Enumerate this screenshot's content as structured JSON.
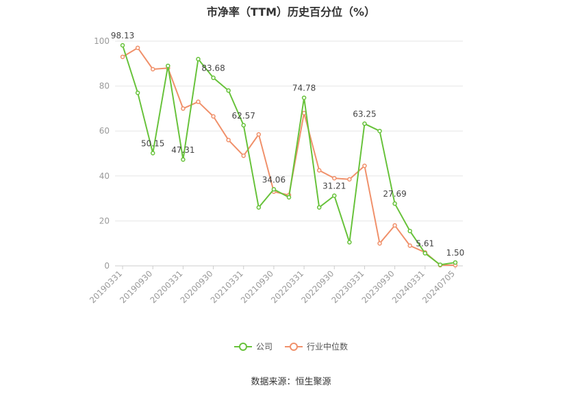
{
  "title": "市净率（TTM）历史百分位（%）",
  "source": "数据来源：恒生聚源",
  "colors": {
    "company": "#67c23a",
    "industry": "#f0906a",
    "grid": "#e6e6e6",
    "axis": "#999999"
  },
  "legend": {
    "company": "公司",
    "industry": "行业中位数"
  },
  "chart_data": {
    "type": "line",
    "title": "市净率（TTM）历史百分位（%）",
    "ylim": [
      0,
      100
    ],
    "yticks": [
      0,
      20,
      40,
      60,
      80,
      100
    ],
    "x": [
      "20190331",
      "20190630",
      "20190930",
      "20191231",
      "20200331",
      "20200630",
      "20200930",
      "20201231",
      "20210331",
      "20210630",
      "20210930",
      "20211231",
      "20220331",
      "20220630",
      "20220930",
      "20221231",
      "20230331",
      "20230630",
      "20230930",
      "20231231",
      "20240331",
      "20240630",
      "20240705"
    ],
    "xtick_labels": [
      "20190331",
      "20190930",
      "20200331",
      "20200930",
      "20210331",
      "20210930",
      "20220331",
      "20220930",
      "20230331",
      "20230930",
      "20240331",
      "20240705"
    ],
    "grid": true,
    "legend_position": "bottom",
    "series": [
      {
        "name": "公司",
        "values": [
          98.13,
          77,
          50.15,
          89,
          47.31,
          92,
          83.68,
          78,
          62.57,
          26,
          34.06,
          30.5,
          74.78,
          26,
          31.21,
          10.5,
          63.25,
          60,
          27.69,
          15.5,
          5.61,
          0.5,
          1.5
        ]
      },
      {
        "name": "行业中位数",
        "values": [
          93,
          97,
          87.5,
          88,
          70,
          73,
          66.5,
          56,
          49,
          58.5,
          33,
          31.5,
          68,
          42.5,
          39,
          38.5,
          44.5,
          10,
          18,
          9,
          6,
          0.3,
          0.3
        ]
      }
    ],
    "data_labels": [
      {
        "index": 0,
        "text": "98.13"
      },
      {
        "index": 2,
        "text": "50.15"
      },
      {
        "index": 4,
        "text": "47.31"
      },
      {
        "index": 6,
        "text": "83.68"
      },
      {
        "index": 8,
        "text": "62.57"
      },
      {
        "index": 10,
        "text": "34.06"
      },
      {
        "index": 12,
        "text": "74.78"
      },
      {
        "index": 14,
        "text": "31.21"
      },
      {
        "index": 16,
        "text": "63.25"
      },
      {
        "index": 18,
        "text": "27.69"
      },
      {
        "index": 20,
        "text": "5.61"
      },
      {
        "index": 22,
        "text": "1.50"
      }
    ]
  }
}
